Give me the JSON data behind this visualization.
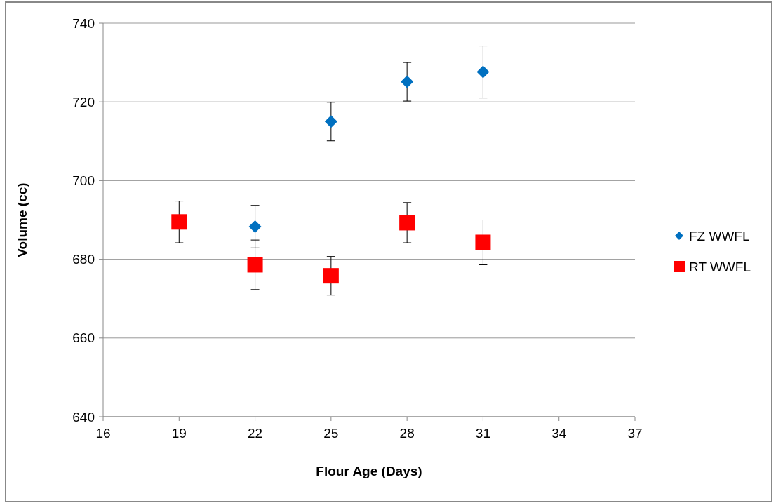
{
  "chart_data": {
    "type": "scatter",
    "xlabel": "Flour Age (Days)",
    "ylabel": "Volume (cc)",
    "x": [
      19,
      22,
      25,
      28,
      31
    ],
    "series": [
      {
        "name": "FZ WWFL",
        "color": "#0070c0",
        "marker": "diamond",
        "values": [
          null,
          688.3,
          715.0,
          725.1,
          727.6
        ],
        "errors": [
          null,
          5.4,
          4.9,
          4.9,
          6.6
        ]
      },
      {
        "name": "RT WWFL",
        "color": "#ff0000",
        "marker": "square",
        "values": [
          689.5,
          678.6,
          675.8,
          689.3,
          684.3
        ],
        "errors": [
          5.3,
          6.3,
          4.9,
          5.1,
          5.7
        ]
      }
    ],
    "xlim": [
      16,
      37
    ],
    "xticks": [
      16,
      19,
      22,
      25,
      28,
      31,
      34,
      37
    ],
    "ylim": [
      640,
      740
    ],
    "yticks": [
      640,
      660,
      680,
      700,
      720,
      740
    ],
    "grid": "y",
    "legend": "right"
  }
}
